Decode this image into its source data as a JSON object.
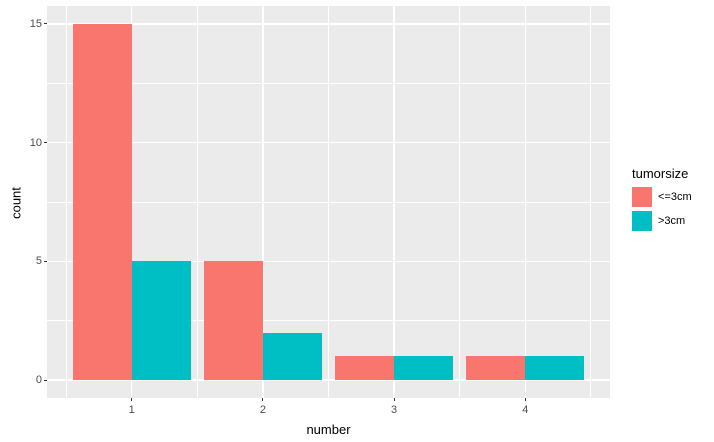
{
  "background": "#FFFFFF",
  "chart_data": {
    "type": "bar",
    "title": "",
    "xlabel": "number",
    "ylabel": "count",
    "legend_title": "tumorsize",
    "legend_position": "right",
    "categories": [
      1,
      2,
      3,
      4
    ],
    "series": [
      {
        "name": "<=3cm",
        "color": "#F8766D",
        "values": [
          15,
          5,
          1,
          1
        ]
      },
      {
        "name": ">3cm",
        "color": "#00BFC4",
        "values": [
          5,
          2,
          1,
          1
        ]
      }
    ],
    "x_tick_labels": [
      "1",
      "2",
      "3",
      "4"
    ],
    "y_ticks": [
      0,
      5,
      10,
      15
    ],
    "y_minor_ticks": [
      2.5,
      7.5,
      12.5
    ],
    "x_minor_ticks": [
      0.5,
      1.5,
      2.5,
      3.5,
      4.5
    ],
    "xlim": [
      0.355,
      4.645
    ],
    "ylim": [
      -0.75,
      15.75
    ],
    "bar_group_width": 0.9,
    "grid": true,
    "style": {
      "panel_bg": "#EBEBEB",
      "grid_color": "#FFFFFF",
      "tick_color": "#333333",
      "tick_label_color": "#4D4D4D",
      "axis_title_color": "#000000",
      "legend_text_color": "#000000"
    }
  }
}
